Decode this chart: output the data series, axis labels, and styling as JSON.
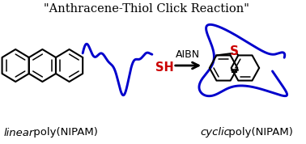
{
  "title": "\"Anthracene-Thiol Click Reaction\"",
  "label_left_italic": "linear",
  "label_left_regular": " poly(NIPAM)",
  "label_right_italic": "cyclic",
  "label_right_regular": " poly(NIPAM)",
  "arrow_label": "AIBN",
  "sh_label": "SH",
  "s_label": "S",
  "bg_color": "#ffffff",
  "black": "#000000",
  "blue": "#0000cc",
  "red": "#cc0000",
  "title_fontsize": 10.5,
  "label_fontsize": 9.5,
  "arrow_fontsize": 9
}
